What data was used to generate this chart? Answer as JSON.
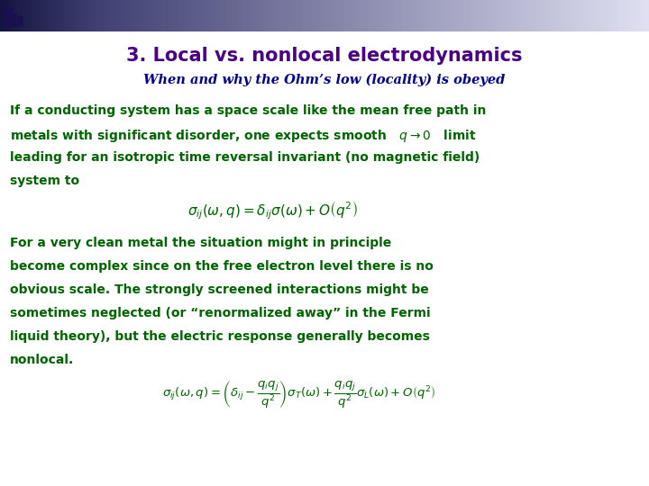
{
  "title": "3. Local vs. nonlocal electrodynamics",
  "subtitle": "When and why the Ohm’s low (locality) is obeyed",
  "title_color": "#4B0082",
  "subtitle_color": "#00008B",
  "body_color": "#006400",
  "bg_color": "#FFFFFF",
  "title_fontsize": 15,
  "subtitle_fontsize": 10.5,
  "body_fontsize": 10,
  "eq1_fontsize": 11,
  "eq2_fontsize": 9.5,
  "para1_lines": [
    "If a conducting system has a space scale like the mean free path in",
    "metals with significant disorder, one expects smooth   $q \\rightarrow 0$   limit",
    "leading for an isotropic time reversal invariant (no magnetic field)",
    "system to"
  ],
  "eq1": "$\\sigma_{ij}(\\omega,q) = \\delta_{ij}\\sigma(\\omega) + O\\left(q^2\\right)$",
  "para2_lines": [
    "For a very clean metal the situation might in principle",
    "become complex since on the free electron level there is no",
    "obvious scale. The strongly screened interactions might be",
    "sometimes neglected (or “renormalized away” in the Fermi",
    "liquid theory), but the electric response generally becomes",
    "nonlocal."
  ],
  "eq2": "$\\sigma_{ij}(\\omega,q) = \\left(\\delta_{ij} - \\dfrac{q_i q_j}{q^2}\\right)\\sigma_T(\\omega) + \\dfrac{q_i q_j}{q^2}\\sigma_L(\\omega) + O\\left(q^2\\right)$"
}
